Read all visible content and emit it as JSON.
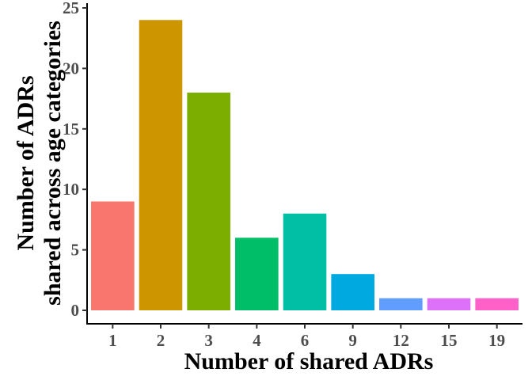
{
  "chart_data": {
    "type": "bar",
    "title": "",
    "xlabel": "Number of shared ADRs",
    "ylabel_lines": [
      "Number of ADRs",
      "shared across age categories"
    ],
    "categories": [
      "1",
      "2",
      "3",
      "4",
      "6",
      "9",
      "12",
      "15",
      "19"
    ],
    "values": [
      9,
      24,
      18,
      6,
      8,
      3,
      1,
      1,
      1
    ],
    "colors": [
      "#F8766D",
      "#CD9600",
      "#7CAE00",
      "#00BE67",
      "#00BFA5",
      "#00A9E0",
      "#619CFF",
      "#DD71FA",
      "#FF61C9"
    ],
    "ylim": [
      0,
      25
    ],
    "yticks": [
      0,
      5,
      10,
      15,
      20,
      25
    ],
    "grid": false,
    "legend": "none"
  }
}
